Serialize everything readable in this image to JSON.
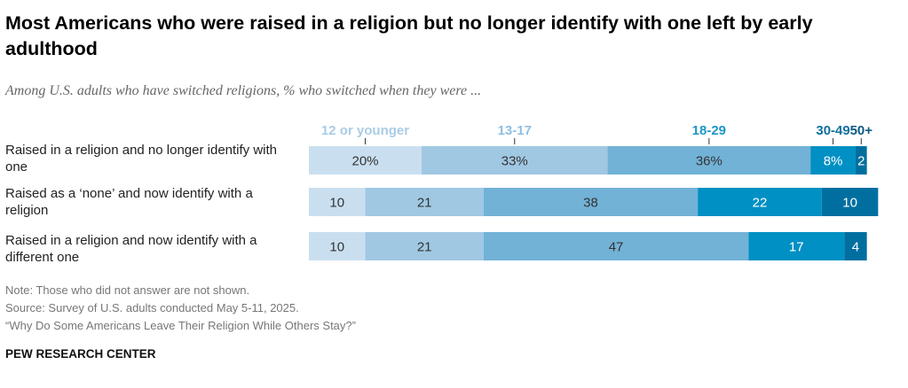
{
  "title": "Most Americans who were raised in a religion but no longer identify with one left by early adulthood",
  "subtitle": "Among U.S. adults who have switched religions, % who switched when they were ...",
  "notes": [
    "Note: Those who did not answer are not shown.",
    "Source: Survey of U.S. adults conducted May 5-11, 2025.",
    "“Why Do Some Americans Leave Their Religion While Others Stay?”"
  ],
  "brand": "PEW RESEARCH CENTER",
  "chart_data": {
    "type": "bar",
    "orientation": "horizontal",
    "stacked": true,
    "categories": [
      "Raised in a religion and no longer identify with one",
      "Raised as a ‘none’ and now identify with a religion",
      "Raised in a religion and now identify with a different one"
    ],
    "series": [
      {
        "name": "12 or younger",
        "color": "#c9dff0",
        "label_color": "#a9cce6",
        "values": [
          20,
          10,
          10
        ],
        "labels": [
          "20%",
          "10",
          "10"
        ]
      },
      {
        "name": "13-17",
        "color": "#a0c8e3",
        "label_color": "#8fbfe0",
        "values": [
          33,
          21,
          21
        ],
        "labels": [
          "33%",
          "21",
          "21"
        ]
      },
      {
        "name": "18-29",
        "color": "#72b2d6",
        "label_color": "#1e95c8",
        "values": [
          36,
          38,
          47
        ],
        "labels": [
          "36%",
          "38",
          "47"
        ]
      },
      {
        "name": "30-49",
        "color": "#0090c4",
        "label_color": "#10709e",
        "values": [
          8,
          22,
          17
        ],
        "labels": [
          "8%",
          "22",
          "17"
        ]
      },
      {
        "name": "50+",
        "color": "#006fa0",
        "label_color": "#0a5b86",
        "values": [
          2,
          10,
          4
        ],
        "labels": [
          "2",
          "10",
          "4"
        ]
      }
    ],
    "xlim": [
      0,
      100
    ],
    "grid": false,
    "legend": "top"
  }
}
